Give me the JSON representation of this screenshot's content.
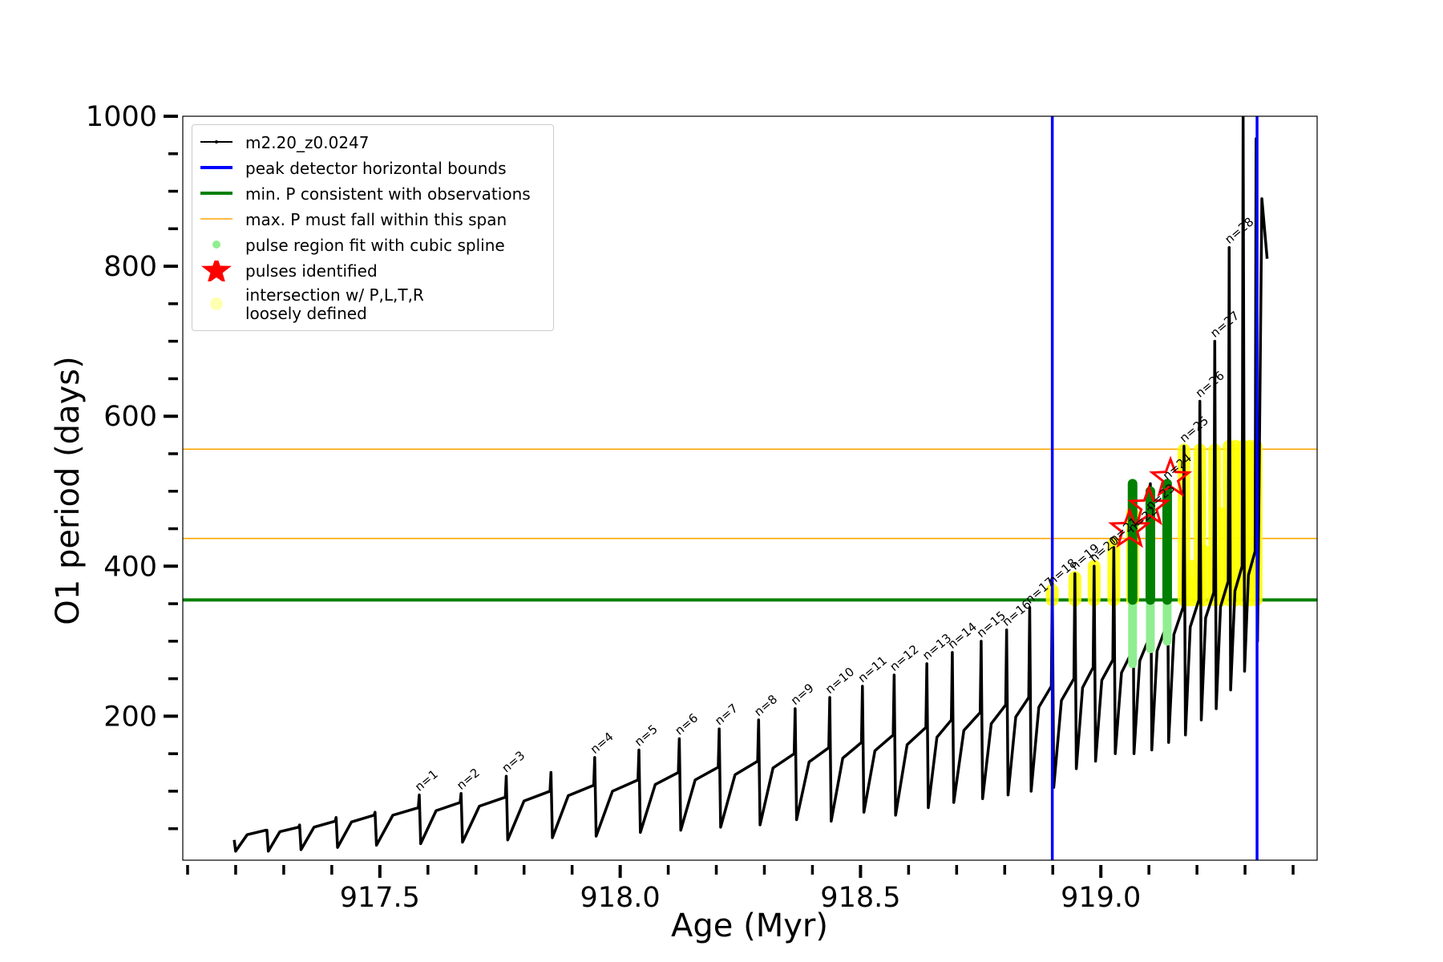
{
  "chart_data": {
    "type": "line",
    "x_label": "Age (Myr)",
    "y_label": "O1 period (days)",
    "xlim": [
      917.09,
      919.45
    ],
    "ylim": [
      8,
      1000
    ],
    "xticks": [
      917.5,
      {
        "value": 918,
        "label": "918.0"
      },
      918.5,
      {
        "value": 919,
        "label": "919.0"
      }
    ],
    "xminorticks": [
      917.1,
      917.2,
      917.3,
      917.4,
      917.6,
      917.7,
      917.8,
      917.9,
      918.1,
      918.2,
      918.3,
      918.4,
      918.6,
      918.7,
      918.8,
      918.9,
      919.1,
      919.2,
      919.3,
      919.4
    ],
    "yticks": [
      200,
      400,
      600,
      800,
      1000
    ],
    "yminorticks": [
      50,
      100,
      150,
      250,
      300,
      350,
      450,
      500,
      550,
      650,
      700,
      750,
      850,
      900,
      950
    ],
    "legend_position": "upper left",
    "series": [
      {
        "name": "m2.20_z0.0247",
        "color": "#000000",
        "x": [
          917.197,
          917.2,
          917.224,
          917.263,
          917.265,
          917.268,
          917.292,
          917.331,
          917.333,
          917.336,
          917.363,
          917.407,
          917.409,
          917.412,
          917.441,
          917.488,
          917.49,
          917.493,
          917.527,
          917.58,
          917.582,
          917.585,
          917.617,
          917.667,
          917.669,
          917.672,
          917.707,
          917.761,
          917.763,
          917.766,
          917.8,
          917.854,
          917.856,
          917.859,
          917.892,
          917.945,
          917.947,
          917.95,
          917.984,
          918.037,
          918.039,
          918.042,
          918.073,
          918.121,
          918.123,
          918.126,
          918.156,
          918.204,
          918.206,
          918.209,
          918.239,
          918.286,
          918.288,
          918.291,
          918.318,
          918.362,
          918.364,
          918.367,
          918.393,
          918.434,
          918.436,
          918.439,
          918.463,
          918.502,
          918.504,
          918.507,
          918.53,
          918.568,
          918.57,
          918.573,
          918.597,
          918.636,
          918.638,
          918.641,
          918.659,
          918.689,
          918.691,
          918.694,
          918.715,
          918.749,
          918.751,
          918.754,
          918.772,
          918.802,
          918.804,
          918.807,
          918.823,
          918.85,
          918.852,
          918.855,
          918.871,
          918.897,
          918.899,
          918.902,
          918.918,
          918.944,
          918.946,
          918.949,
          918.962,
          918.984,
          918.986,
          918.989,
          919.002,
          919.025,
          919.027,
          919.03,
          919.043,
          919.064,
          919.066,
          919.069,
          919.081,
          919.101,
          919.103,
          919.106,
          919.117,
          919.136,
          919.138,
          919.141,
          919.152,
          919.171,
          919.173,
          919.176,
          919.186,
          919.204,
          919.206,
          919.209,
          919.218,
          919.235,
          919.237,
          919.24,
          919.249,
          919.265,
          919.267,
          919.27,
          919.279,
          919.294,
          919.296,
          919.299,
          919.307,
          919.321,
          919.323,
          919.326,
          919.335,
          919.346
        ],
        "values": [
          35,
          20,
          42,
          48,
          48,
          20,
          46,
          52,
          55,
          22,
          52,
          60,
          65,
          25,
          59,
          68,
          72,
          28,
          68,
          78,
          95,
          30,
          74,
          85,
          97,
          32,
          80,
          92,
          120,
          35,
          87,
          100,
          125,
          38,
          94,
          108,
          145,
          40,
          100,
          115,
          155,
          45,
          109,
          125,
          170,
          48,
          115,
          132,
          183,
          52,
          122,
          140,
          195,
          55,
          131,
          150,
          210,
          62,
          139,
          158,
          225,
          60,
          144,
          165,
          240,
          72,
          154,
          175,
          255,
          68,
          162,
          185,
          270,
          78,
          172,
          195,
          285,
          85,
          181,
          205,
          300,
          90,
          190,
          215,
          315,
          95,
          199,
          225,
          345,
          100,
          212,
          240,
          370,
          105,
          221,
          250,
          390,
          130,
          238,
          265,
          400,
          140,
          248,
          275,
          425,
          150,
          258,
          285,
          500,
          150,
          274,
          305,
          510,
          155,
          287,
          320,
          510,
          165,
          309,
          345,
          560,
          175,
          319,
          355,
          620,
          195,
          331,
          365,
          700,
          210,
          346,
          380,
          825,
          235,
          367,
          400,
          1000,
          260,
          388,
          420,
          970,
          300,
          890,
          810
        ]
      }
    ],
    "vlines": {
      "name": "peak detector horizontal bounds",
      "color": "#0000ff",
      "values": [
        918.899,
        919.325
      ]
    },
    "hlines": [
      {
        "name": "min. P consistent with observations",
        "color": "#008000",
        "values": [
          355
        ]
      },
      {
        "name": "max. P must fall within this span",
        "color": "#ffa500",
        "values": [
          437,
          556
        ]
      }
    ],
    "spline_regions": {
      "name": "pulse region fit with cubic spline",
      "color": "#008000",
      "light_color": "#90ee90",
      "x": [
        919.066,
        919.103,
        919.138
      ],
      "low": [
        270,
        290,
        300
      ],
      "high": [
        510,
        500,
        510
      ]
    },
    "stars": {
      "name": "pulses identified",
      "color": "#ff0000",
      "x": [
        919.06,
        919.1,
        919.145
      ],
      "values": [
        449,
        479,
        517
      ]
    },
    "intersections": {
      "name": "intersection w/ P,L,T,R\nloosely defined",
      "color": "#ffff00",
      "x": [
        918.899,
        918.946,
        918.986,
        919.027,
        919.066,
        919.173,
        919.18,
        919.19,
        919.206,
        919.215,
        919.237,
        919.25,
        919.267,
        919.28,
        919.296,
        919.31,
        919.323
      ],
      "low": [
        355,
        355,
        355,
        355,
        355,
        355,
        355,
        355,
        355,
        355,
        355,
        355,
        355,
        355,
        355,
        355,
        355
      ],
      "high": [
        368,
        385,
        400,
        430,
        470,
        555,
        380,
        400,
        555,
        420,
        555,
        470,
        560,
        560,
        560,
        560,
        560
      ]
    },
    "annotations": [
      {
        "text": "n=1",
        "x": 917.582,
        "y": 95
      },
      {
        "text": "n=2",
        "x": 917.669,
        "y": 97
      },
      {
        "text": "n=3",
        "x": 917.763,
        "y": 120
      },
      {
        "text": "n=4",
        "x": 917.947,
        "y": 145
      },
      {
        "text": "n=5",
        "x": 918.039,
        "y": 155
      },
      {
        "text": "n=6",
        "x": 918.123,
        "y": 170
      },
      {
        "text": "n=7",
        "x": 918.206,
        "y": 183
      },
      {
        "text": "n=8",
        "x": 918.288,
        "y": 195
      },
      {
        "text": "n=9",
        "x": 918.364,
        "y": 210
      },
      {
        "text": "n=10",
        "x": 918.436,
        "y": 225
      },
      {
        "text": "n=11",
        "x": 918.504,
        "y": 240
      },
      {
        "text": "n=12",
        "x": 918.57,
        "y": 255
      },
      {
        "text": "n=13",
        "x": 918.638,
        "y": 270
      },
      {
        "text": "n=14",
        "x": 918.691,
        "y": 285
      },
      {
        "text": "n=15",
        "x": 918.751,
        "y": 300
      },
      {
        "text": "n=16",
        "x": 918.804,
        "y": 315
      },
      {
        "text": "n=17",
        "x": 918.852,
        "y": 345
      },
      {
        "text": "n=18",
        "x": 918.899,
        "y": 370
      },
      {
        "text": "n=19",
        "x": 918.946,
        "y": 390
      },
      {
        "text": "n=20",
        "x": 918.986,
        "y": 400
      },
      {
        "text": "n=21",
        "x": 919.027,
        "y": 425
      },
      {
        "text": "n=22",
        "x": 919.066,
        "y": 440
      },
      {
        "text": "n=23",
        "x": 919.103,
        "y": 470
      },
      {
        "text": "n=24",
        "x": 919.138,
        "y": 510
      },
      {
        "text": "n=25",
        "x": 919.173,
        "y": 560
      },
      {
        "text": "n=26",
        "x": 919.206,
        "y": 620
      },
      {
        "text": "n=27",
        "x": 919.237,
        "y": 700
      },
      {
        "text": "n=28",
        "x": 919.267,
        "y": 825
      }
    ]
  }
}
